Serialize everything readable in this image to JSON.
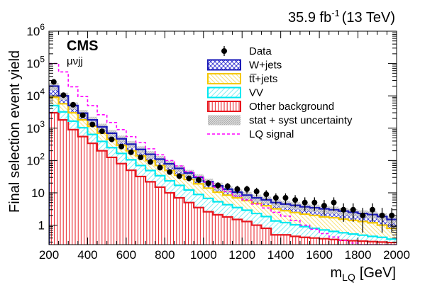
{
  "chart_data": {
    "type": "histogram",
    "title": "35.9 fb-1 (13 TeV)",
    "lumi": {
      "value": "35.9 fb",
      "exp": "-1",
      "energy": "(13 TeV)"
    },
    "experiment": "CMS",
    "channel": "μνjj",
    "xlabel": {
      "main": "m",
      "sub": "LQ",
      "unit": "[GeV]"
    },
    "ylabel": "Final selection event yield",
    "xlim": [
      200,
      2000
    ],
    "ylim": [
      0.25,
      1000000
    ],
    "yscale": "log",
    "x_ticks": [
      200,
      400,
      600,
      800,
      1000,
      1200,
      1400,
      1600,
      1800,
      2000
    ],
    "y_ticks": [
      {
        "value": 1000000,
        "label_base": "10",
        "label_exp": "6"
      },
      {
        "value": 100000,
        "label_base": "10",
        "label_exp": "5"
      },
      {
        "value": 10000,
        "label_base": "10",
        "label_exp": "4"
      },
      {
        "value": 1000,
        "label_base": "10",
        "label_exp": "3"
      },
      {
        "value": 100,
        "label_base": "10",
        "label_exp": "2"
      },
      {
        "value": 10,
        "label_base": "10",
        "label_exp": ""
      },
      {
        "value": 1,
        "label_base": "1",
        "label_exp": ""
      }
    ],
    "bin_edges": [
      200,
      250,
      300,
      350,
      400,
      450,
      500,
      550,
      600,
      650,
      700,
      750,
      800,
      850,
      900,
      950,
      1000,
      1050,
      1100,
      1150,
      1200,
      1250,
      1300,
      1350,
      1400,
      1450,
      1500,
      1550,
      1600,
      1650,
      1700,
      1750,
      1800,
      1850,
      1900,
      1950,
      2000
    ],
    "stack": [
      {
        "name": "Other background",
        "color": "#e8161e",
        "fill": "other",
        "values": [
          3000,
          1800,
          900,
          550,
          340,
          200,
          125,
          80,
          50,
          32,
          22,
          15,
          10,
          7,
          5,
          3.5,
          2.6,
          2.1,
          1.8,
          1.5,
          1.3,
          1.0,
          0.8,
          0.5,
          0.5,
          0.45,
          0.42,
          0.4,
          0.38,
          0.36,
          0.34,
          0.33,
          0.32,
          0.31,
          0.3,
          0.29
        ]
      },
      {
        "name": "VV",
        "color": "#00e8f0",
        "fill": "vv",
        "values": [
          2000,
          1400,
          750,
          480,
          300,
          190,
          125,
          85,
          55,
          38,
          27,
          19,
          13.5,
          10,
          7.3,
          5.4,
          4.1,
          3.2,
          2.5,
          2.0,
          1.6,
          1.3,
          1.05,
          0.85,
          0.7,
          0.58,
          0.48,
          0.4,
          0.33,
          0.28,
          0.24,
          0.2,
          0.17,
          0.14,
          0.12,
          0.08
        ]
      },
      {
        "name": "tt̅+jets",
        "color": "#f5c800",
        "fill": "tt",
        "values": [
          4000,
          2500,
          1350,
          780,
          510,
          310,
          200,
          135,
          95,
          70,
          50,
          36,
          25.5,
          18,
          13.7,
          10.1,
          7.3,
          5.2,
          4.2,
          3.5,
          2.9,
          2.4,
          2.15,
          1.85,
          1.6,
          1.42,
          1.3,
          1.2,
          1.09,
          1.06,
          0.95,
          0.87,
          0.81,
          0.73,
          0.58,
          0.43
        ]
      },
      {
        "name": "W+jets",
        "color": "#1b1bb8",
        "fill": "wj",
        "values": [
          11000,
          4300,
          2000,
          1100,
          650,
          400,
          250,
          170,
          120,
          80,
          57,
          40,
          30,
          22,
          15,
          11,
          8,
          6,
          4.5,
          3.5,
          2.7,
          2.3,
          2.1,
          1.8,
          1.7,
          1.65,
          1.5,
          1.45,
          1.4,
          1.3,
          1.2,
          1.1,
          1.0,
          0.95,
          0.85,
          0.7
        ]
      }
    ],
    "uncertainty": {
      "label": "stat + syst uncertainty",
      "rel": 0.25
    },
    "signal": {
      "label": "LQ signal",
      "color": "#ff00ff",
      "values": [
        100000,
        55000,
        19000,
        9500,
        5000,
        2600,
        1500,
        900,
        550,
        360,
        230,
        150,
        100,
        68,
        46,
        32,
        22,
        15,
        11,
        8,
        6,
        4.5,
        3.4,
        2.5,
        1.9,
        1.4,
        1.0,
        0.75,
        0.55,
        0.43,
        0.34,
        0.28,
        0.24,
        0.22,
        0.2,
        0.19
      ]
    },
    "data": {
      "label": "Data",
      "values": [
        27000,
        10500,
        5300,
        2500,
        1300,
        800,
        450,
        270,
        180,
        125,
        90,
        60,
        44,
        33,
        28,
        25,
        20,
        17,
        16,
        13,
        13,
        11,
        9,
        7,
        7,
        6,
        5,
        5,
        4,
        5,
        3,
        3,
        2,
        3,
        2,
        2
      ]
    },
    "legend": [
      {
        "key": "data",
        "label": "Data"
      },
      {
        "key": "wj",
        "label": "W+jets"
      },
      {
        "key": "tt",
        "label": "tt̅+jets"
      },
      {
        "key": "vv",
        "label": "VV"
      },
      {
        "key": "other",
        "label": "Other background"
      },
      {
        "key": "unc",
        "label": "stat + syst uncertainty"
      },
      {
        "key": "sig",
        "label": "LQ signal"
      }
    ]
  }
}
